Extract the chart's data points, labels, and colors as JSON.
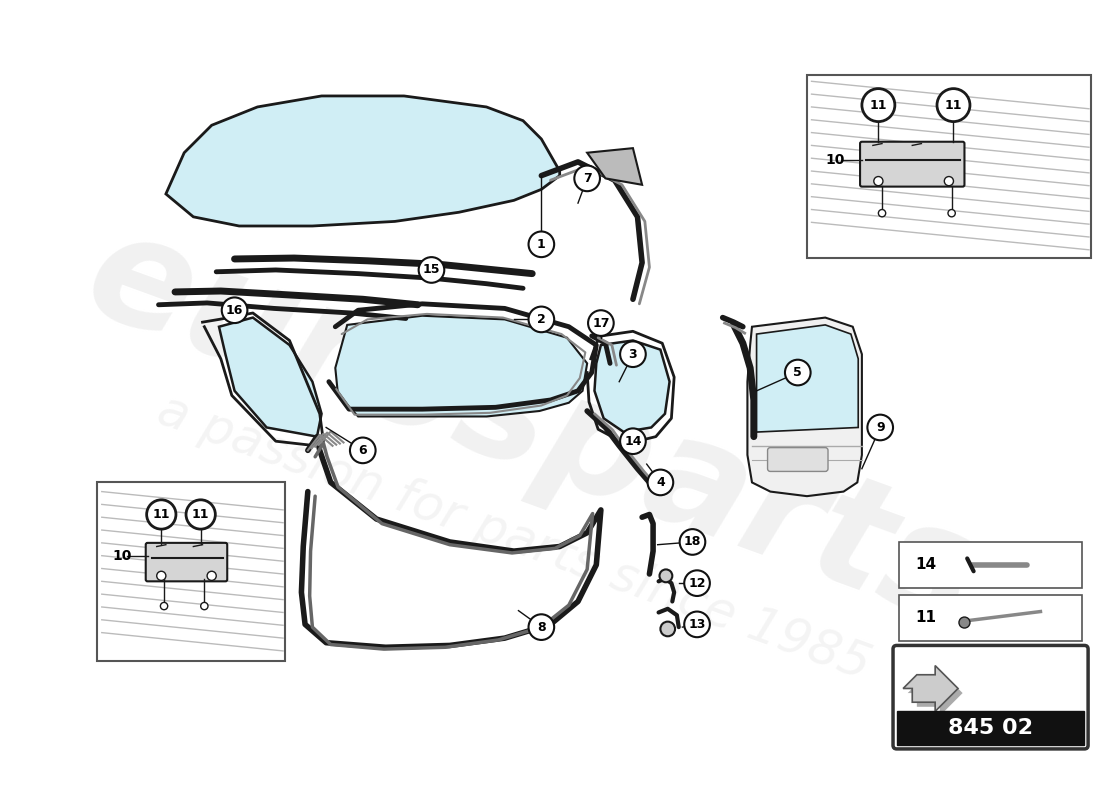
{
  "background_color": "#ffffff",
  "glass_color": "#d0eef5",
  "glass_edge_color": "#1a1a1a",
  "line_color": "#1a1a1a",
  "watermark_color_1": "#d8d8d8",
  "watermark_color_2": "#e0e0e0",
  "part_number_text": "845 02",
  "fig_width": 11.0,
  "fig_height": 8.0,
  "dpi": 100
}
